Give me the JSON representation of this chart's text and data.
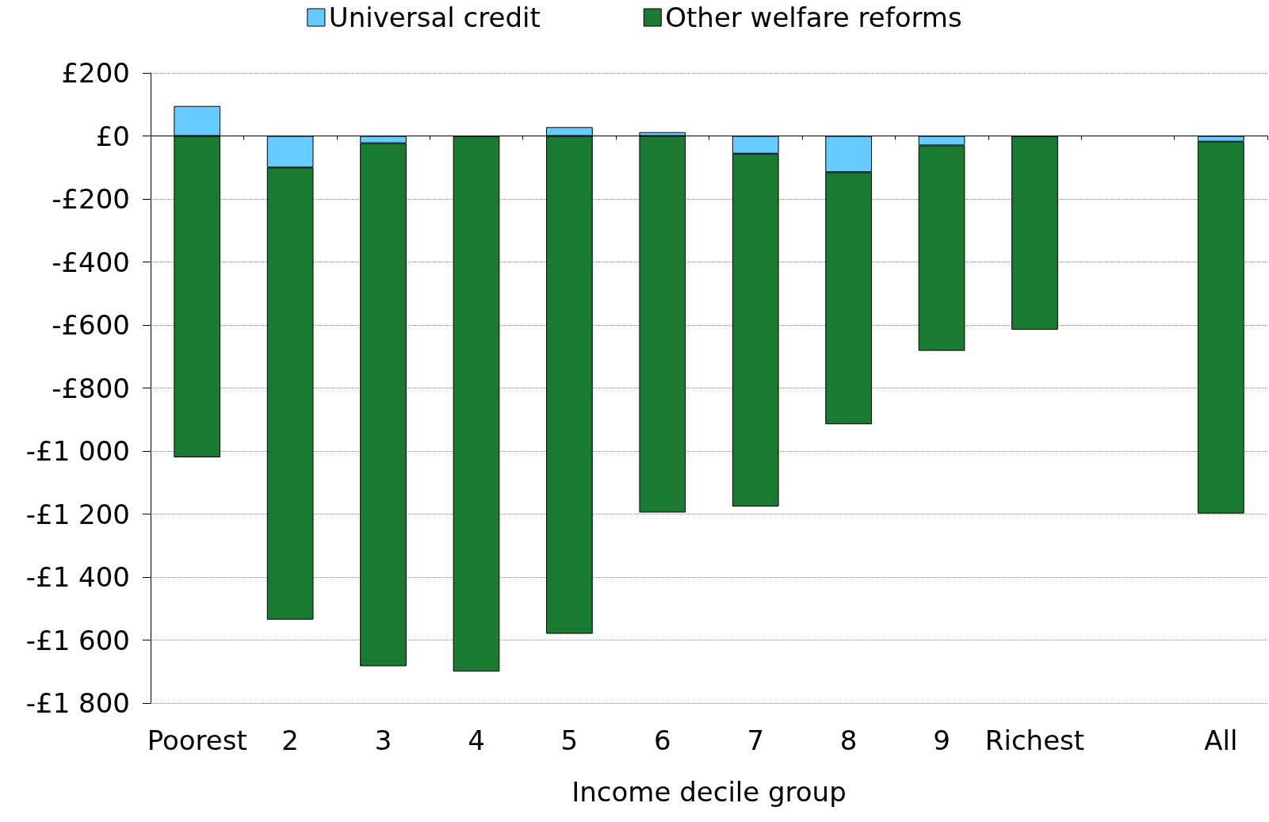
{
  "chart_data": {
    "type": "bar",
    "stacked": true,
    "xlabel": "Income decile group",
    "categories": [
      "Poorest",
      "2",
      "3",
      "4",
      "5",
      "6",
      "7",
      "8",
      "9",
      "Richest",
      null,
      "All"
    ],
    "series": [
      {
        "name": "Universal credit",
        "color": "#66ccff",
        "values": [
          95,
          -100,
          -23,
          null,
          28,
          12,
          -56,
          -115,
          -30,
          null,
          null,
          -18
        ]
      },
      {
        "name": "Other welfare reforms",
        "color": "#1a7a32",
        "values": [
          -1020,
          -1435,
          -1660,
          -1700,
          -1580,
          -1195,
          -1120,
          -800,
          -652,
          -615,
          null,
          -1180
        ]
      }
    ],
    "ylim": [
      -1800,
      200
    ],
    "yticks": [
      {
        "value": -1800,
        "label": "-£1 800"
      },
      {
        "value": -1600,
        "label": "-£1 600"
      },
      {
        "value": -1400,
        "label": "-£1 400"
      },
      {
        "value": -1200,
        "label": "-£1 200"
      },
      {
        "value": -1000,
        "label": "-£1 000"
      },
      {
        "value": -800,
        "label": "-£800"
      },
      {
        "value": -600,
        "label": "-£600"
      },
      {
        "value": -400,
        "label": "-£400"
      },
      {
        "value": -200,
        "label": "-£200"
      },
      {
        "value": 0,
        "label": "£0"
      },
      {
        "value": 200,
        "label": "£200"
      }
    ],
    "grid": "y",
    "legend": "top"
  }
}
